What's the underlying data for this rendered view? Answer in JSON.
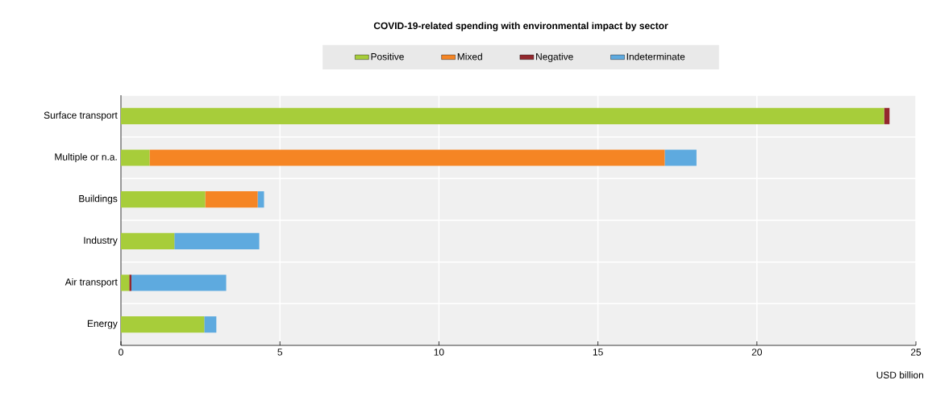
{
  "chart_data": {
    "type": "bar",
    "orientation": "horizontal",
    "stacked": true,
    "title": "COVID-19-related spending with environmental impact by sector",
    "xlabel": "USD billion",
    "categories": [
      "Surface transport",
      "Multiple or n.a.",
      "Buildings",
      "Industry",
      "Air transport",
      "Energy"
    ],
    "series": [
      {
        "name": "Positive",
        "color": "#a7cd3a",
        "values": [
          24.0,
          0.9,
          2.65,
          1.68,
          0.26,
          2.62
        ]
      },
      {
        "name": "Mixed",
        "color": "#f58524",
        "values": [
          0,
          16.2,
          1.65,
          0,
          0,
          0
        ]
      },
      {
        "name": "Negative",
        "color": "#93282e",
        "values": [
          0.17,
          0,
          0,
          0,
          0.07,
          0
        ]
      },
      {
        "name": "Indeterminate",
        "color": "#5eaadf",
        "values": [
          0,
          1.0,
          0.2,
          2.67,
          2.98,
          0.38
        ]
      }
    ],
    "xlim": [
      0,
      25
    ],
    "xticks": [
      0,
      5,
      10,
      15,
      20,
      25
    ],
    "grid": "x",
    "legend": "top"
  }
}
